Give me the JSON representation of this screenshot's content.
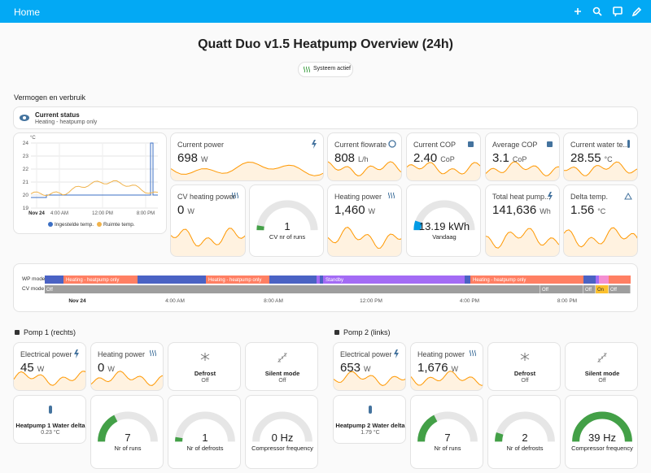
{
  "header": {
    "title": "Home"
  },
  "title": "Quatt Duo v1.5 Heatpump Overview (24h)",
  "badge": "Systeem actief",
  "section": "Vermogen en verbruik",
  "status": {
    "name": "Current status",
    "state": "Heating - heatpump only"
  },
  "temp_chart": {
    "unit": "°C",
    "yticks": [
      19,
      20,
      21,
      22,
      23,
      24
    ],
    "xticks": [
      "Nov 24",
      "4:00 AM",
      "12:00 PM",
      "8:00 PM"
    ],
    "legend": [
      "Ingestelde temp.",
      "Ruimte temp."
    ]
  },
  "tiles": [
    {
      "name": "Current power",
      "value": "698",
      "unit": "W"
    },
    {
      "name": "Current flowrate",
      "value": "808",
      "unit": "L/h"
    },
    {
      "name": "Current COP",
      "value": "2.40",
      "unit": "CoP"
    },
    {
      "name": "Average COP",
      "value": "3.1",
      "unit": "CoP"
    },
    {
      "name": "Current water te...",
      "value": "28.55",
      "unit": "°C"
    },
    {
      "name": "CV heating power",
      "value": "0",
      "unit": "W"
    },
    {
      "name": "Heating power",
      "value": "1,460",
      "unit": "W"
    },
    {
      "name": "Total heat pump...",
      "value": "141,636",
      "unit": "Wh"
    },
    {
      "name": "Delta temp.",
      "value": "1.56",
      "unit": "°C"
    }
  ],
  "gauges": [
    {
      "value": "1",
      "label": "CV nr of runs"
    },
    {
      "value": "13.19 kWh",
      "label": "Vandaag"
    }
  ],
  "timeline": {
    "rows": [
      "WP mode",
      "CV mode"
    ],
    "wp_segments": [
      "Heating - heatpump only",
      "Heating - heatpump only",
      "Standby",
      "Heating - heatpump only"
    ],
    "cv_segments": [
      "Off",
      "Off",
      "Off",
      "On",
      "Off"
    ],
    "xticks": [
      "Nov 24",
      "4:00 AM",
      "8:00 AM",
      "12:00 PM",
      "4:00 PM",
      "8:00 PM"
    ]
  },
  "pumps": [
    {
      "title": "Pomp 1 (rechts)",
      "tiles": [
        {
          "name": "Electrical power",
          "value": "45",
          "unit": "W"
        },
        {
          "name": "Heating power",
          "value": "0",
          "unit": "W"
        }
      ],
      "states": [
        {
          "name": "Defrost",
          "state": "Off"
        },
        {
          "name": "Silent mode",
          "state": "Off"
        }
      ],
      "delta": {
        "name": "Heatpump 1 Water delta",
        "value": "0.23 °C"
      },
      "gauges": [
        {
          "value": "7",
          "label": "Nr of runs"
        },
        {
          "value": "1",
          "label": "Nr of defrosts"
        },
        {
          "value": "0 Hz",
          "label": "Compressor frequency"
        }
      ]
    },
    {
      "title": "Pomp 2 (links)",
      "tiles": [
        {
          "name": "Electrical power",
          "value": "653",
          "unit": "W"
        },
        {
          "name": "Heating power",
          "value": "1,676",
          "unit": "W"
        }
      ],
      "states": [
        {
          "name": "Defrost",
          "state": "Off"
        },
        {
          "name": "Silent mode",
          "state": "Off"
        }
      ],
      "delta": {
        "name": "Heatpump 2 Water delta",
        "value": "1.79 °C"
      },
      "gauges": [
        {
          "value": "7",
          "label": "Nr of runs"
        },
        {
          "value": "2",
          "label": "Nr of defrosts"
        },
        {
          "value": "39 Hz",
          "label": "Compressor frequency"
        }
      ]
    }
  ]
}
